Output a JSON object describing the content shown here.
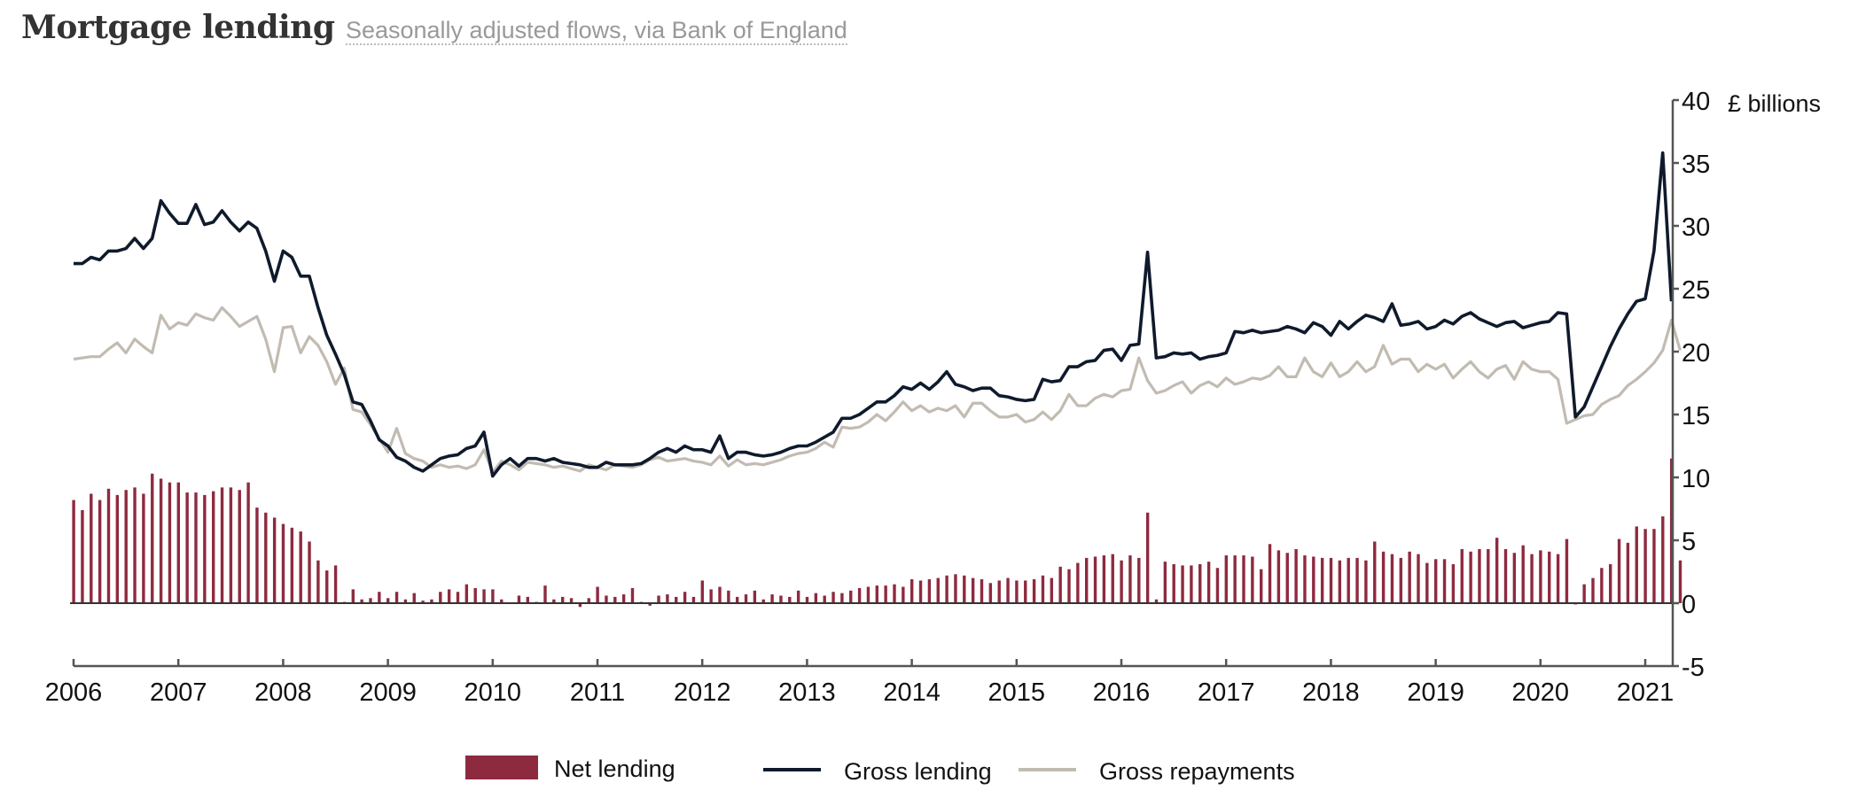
{
  "header": {
    "title": "Mortgage lending",
    "subtitle": "Seasonally adjusted flows, via Bank of England"
  },
  "colors": {
    "net_lending": "#8e2a3f",
    "gross_lending": "#0f1a2c",
    "gross_repayments": "#c2bbb2",
    "axis": "#555555"
  },
  "chart_data": {
    "type": "bar+line",
    "title": "Mortgage lending",
    "subtitle": "Seasonally adjusted flows, via Bank of England",
    "xlabel": "",
    "ylabel": "£ billions",
    "y_axis_side": "right",
    "ylim": [
      -5,
      40
    ],
    "yticks": [
      "-5",
      "0",
      "5",
      "10",
      "15",
      "20",
      "25",
      "30",
      "35",
      "40"
    ],
    "xticks": [
      "2006",
      "2007",
      "2008",
      "2009",
      "2010",
      "2011",
      "2012",
      "2013",
      "2014",
      "2015",
      "2016",
      "2017",
      "2018",
      "2019",
      "2020",
      "2021"
    ],
    "x_start": "2006-01",
    "x_end": "2021-04",
    "frequency": "monthly",
    "grid": false,
    "legend": {
      "position": "bottom",
      "entries": [
        {
          "name": "Net lending",
          "type": "bar"
        },
        {
          "name": "Gross lending",
          "type": "line"
        },
        {
          "name": "Gross repayments",
          "type": "line"
        }
      ]
    },
    "series": [
      {
        "name": "Net lending",
        "type": "bar",
        "values": [
          8.2,
          7.4,
          8.7,
          8.2,
          9.1,
          8.6,
          9.0,
          9.2,
          8.7,
          10.3,
          9.9,
          9.6,
          9.6,
          8.8,
          8.8,
          8.6,
          8.9,
          9.2,
          9.2,
          9.0,
          9.6,
          7.6,
          7.2,
          6.8,
          6.3,
          6.0,
          5.7,
          4.9,
          3.4,
          2.6,
          3.0,
          0.1,
          1.1,
          0.3,
          0.4,
          0.9,
          0.4,
          0.9,
          0.3,
          0.8,
          0.2,
          0.3,
          0.9,
          1.1,
          0.9,
          1.5,
          1.2,
          1.1,
          1.1,
          0.3,
          0.0,
          0.6,
          0.5,
          0.1,
          1.4,
          0.3,
          0.5,
          0.4,
          -0.3,
          0.4,
          1.3,
          0.6,
          0.5,
          0.7,
          1.2,
          0.1,
          -0.2,
          0.6,
          0.7,
          0.5,
          0.9,
          0.5,
          1.8,
          1.1,
          1.3,
          1.0,
          0.5,
          0.7,
          1.0,
          0.3,
          0.7,
          0.6,
          0.5,
          1.0,
          0.5,
          0.8,
          0.6,
          0.9,
          0.8,
          1.0,
          1.2,
          1.3,
          1.4,
          1.4,
          1.5,
          1.3,
          1.9,
          1.8,
          1.9,
          2.0,
          2.2,
          2.3,
          2.2,
          2.0,
          1.9,
          1.6,
          1.8,
          2.0,
          1.8,
          1.8,
          1.9,
          2.2,
          2.0,
          2.9,
          2.7,
          3.2,
          3.6,
          3.7,
          3.8,
          3.9,
          3.4,
          3.8,
          3.6,
          7.2,
          0.3,
          3.3,
          3.1,
          3.0,
          3.0,
          3.1,
          3.3,
          2.8,
          3.8,
          3.8,
          3.8,
          3.7,
          2.7,
          4.7,
          4.2,
          4.0,
          4.3,
          3.8,
          3.7,
          3.6,
          3.6,
          3.4,
          3.6,
          3.6,
          3.4,
          4.9,
          4.1,
          3.9,
          3.6,
          4.1,
          3.9,
          3.2,
          3.5,
          3.5,
          3.1,
          4.3,
          4.1,
          4.3,
          4.3,
          5.2,
          4.3,
          4.0,
          4.6,
          3.9,
          4.2,
          4.1,
          3.9,
          5.1,
          -0.1,
          1.5,
          2.0,
          2.8,
          3.1,
          5.1,
          4.8,
          6.1,
          5.9,
          5.9,
          6.9,
          11.5,
          3.4
        ]
      },
      {
        "name": "Gross lending",
        "type": "line",
        "values": [
          27.0,
          27.0,
          27.5,
          27.3,
          28.0,
          28.0,
          28.2,
          29.0,
          28.2,
          29.0,
          32.0,
          31.0,
          30.2,
          30.2,
          31.7,
          30.1,
          30.3,
          31.2,
          30.3,
          29.6,
          30.3,
          29.8,
          28.0,
          25.6,
          28.0,
          27.5,
          26.0,
          26.0,
          23.5,
          21.3,
          19.8,
          18.2,
          16.0,
          15.8,
          14.5,
          13.0,
          12.5,
          11.6,
          11.3,
          10.8,
          10.5,
          11.0,
          11.5,
          11.7,
          11.8,
          12.3,
          12.5,
          13.6,
          10.1,
          11.0,
          11.5,
          10.9,
          11.5,
          11.5,
          11.3,
          11.5,
          11.2,
          11.1,
          11.0,
          10.8,
          10.8,
          11.2,
          11.0,
          11.0,
          11.0,
          11.1,
          11.5,
          12.0,
          12.3,
          12.0,
          12.5,
          12.2,
          12.2,
          12.0,
          13.3,
          11.5,
          12.0,
          12.0,
          11.8,
          11.7,
          11.8,
          12.0,
          12.3,
          12.5,
          12.5,
          12.8,
          13.2,
          13.6,
          14.7,
          14.7,
          15.0,
          15.5,
          16.0,
          16.0,
          16.5,
          17.2,
          17.0,
          17.5,
          17.0,
          17.6,
          18.4,
          17.4,
          17.2,
          16.9,
          17.1,
          17.1,
          16.5,
          16.4,
          16.2,
          16.1,
          16.2,
          17.8,
          17.6,
          17.7,
          18.8,
          18.8,
          19.2,
          19.3,
          20.1,
          20.2,
          19.3,
          20.5,
          20.6,
          27.9,
          19.5,
          19.6,
          19.9,
          19.8,
          19.9,
          19.4,
          19.6,
          19.7,
          19.9,
          21.6,
          21.5,
          21.7,
          21.5,
          21.6,
          21.7,
          22.0,
          21.8,
          21.5,
          22.3,
          22.0,
          21.3,
          22.4,
          21.8,
          22.4,
          22.9,
          22.7,
          22.4,
          23.8,
          22.1,
          22.2,
          22.4,
          21.8,
          22.0,
          22.5,
          22.2,
          22.8,
          23.1,
          22.6,
          22.3,
          22.0,
          22.3,
          22.4,
          21.9,
          22.1,
          22.3,
          22.4,
          23.1,
          23.0,
          14.8,
          15.6,
          17.2,
          18.8,
          20.4,
          21.8,
          23.0,
          24.0,
          24.2,
          28.0,
          35.8,
          24.0
        ]
      },
      {
        "name": "Gross repayments",
        "type": "line",
        "values": [
          19.4,
          19.5,
          19.6,
          19.6,
          20.2,
          20.7,
          19.9,
          21.0,
          20.4,
          19.9,
          22.9,
          21.8,
          22.3,
          22.1,
          23.0,
          22.7,
          22.5,
          23.5,
          22.8,
          22.0,
          22.4,
          22.8,
          21.0,
          18.4,
          21.9,
          22.0,
          19.9,
          21.2,
          20.5,
          19.2,
          17.4,
          18.7,
          15.4,
          15.2,
          14.2,
          13.1,
          12.0,
          13.9,
          11.9,
          11.5,
          11.3,
          10.8,
          11.0,
          10.8,
          10.9,
          10.7,
          11.0,
          12.2,
          10.4,
          11.3,
          11.0,
          10.6,
          11.2,
          11.1,
          11.0,
          10.8,
          10.9,
          10.7,
          10.5,
          11.0,
          10.8,
          10.6,
          11.0,
          10.9,
          10.8,
          11.0,
          11.4,
          11.6,
          11.3,
          11.4,
          11.5,
          11.3,
          11.2,
          11.0,
          11.7,
          10.9,
          11.4,
          11.0,
          11.1,
          11.0,
          11.2,
          11.4,
          11.7,
          11.9,
          12.0,
          12.3,
          12.8,
          12.4,
          14.0,
          13.9,
          14.0,
          14.4,
          15.0,
          14.5,
          15.2,
          16.0,
          15.3,
          15.7,
          15.2,
          15.5,
          15.3,
          15.7,
          14.8,
          15.9,
          15.9,
          15.3,
          14.8,
          14.8,
          15.0,
          14.4,
          14.6,
          15.2,
          14.6,
          15.3,
          16.6,
          15.7,
          15.7,
          16.3,
          16.6,
          16.4,
          16.9,
          17.0,
          19.5,
          17.7,
          16.7,
          16.9,
          17.3,
          17.6,
          16.7,
          17.3,
          17.6,
          17.2,
          17.9,
          17.4,
          17.6,
          17.9,
          17.8,
          18.1,
          18.8,
          18.0,
          18.0,
          19.5,
          18.4,
          18.0,
          19.1,
          18.0,
          18.4,
          19.2,
          18.4,
          18.8,
          20.5,
          19.0,
          19.4,
          19.4,
          18.4,
          19.0,
          18.6,
          19.0,
          17.9,
          18.6,
          19.2,
          18.4,
          17.9,
          18.6,
          18.9,
          17.8,
          19.2,
          18.6,
          18.4,
          18.4,
          17.8,
          14.3,
          14.6,
          14.9,
          15.0,
          15.8,
          16.2,
          16.5,
          17.3,
          17.8,
          18.4,
          19.1,
          20.1,
          22.5,
          20.1
        ]
      }
    ]
  },
  "legend": {
    "net_lending": "Net lending",
    "gross_lending": "Gross lending",
    "gross_repayments": "Gross repayments"
  }
}
